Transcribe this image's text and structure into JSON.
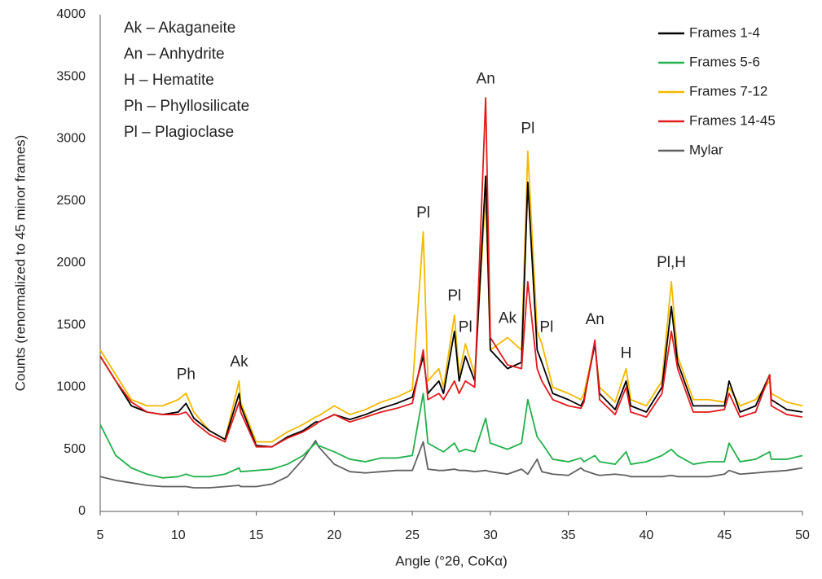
{
  "chart_data": {
    "type": "line",
    "x_label": "Angle (°2θ, CoKα)",
    "y_label": "Counts (renormalized to 45 minor frames)",
    "xlim": [
      5,
      50
    ],
    "xticks": [
      5,
      10,
      15,
      20,
      25,
      30,
      35,
      40,
      45,
      50
    ],
    "ylim": [
      0,
      4000
    ],
    "yticks": [
      0,
      500,
      1000,
      1500,
      2000,
      2500,
      3000,
      3500,
      4000
    ],
    "grid": false,
    "legend": "upper right",
    "key": [
      "Ak – Akaganeite",
      "An – Anhydrite",
      "H – Hematite",
      "Ph – Phyllosilicate",
      "Pl – Plagioclase"
    ],
    "annotations": [
      {
        "text": "Ph",
        "x": 10.5,
        "y": 1100
      },
      {
        "text": "Ak",
        "x": 13.9,
        "y": 1200
      },
      {
        "text": "Pl",
        "x": 25.7,
        "y": 2400
      },
      {
        "text": "Pl",
        "x": 27.7,
        "y": 1730
      },
      {
        "text": "Pl",
        "x": 28.4,
        "y": 1480
      },
      {
        "text": "An",
        "x": 29.7,
        "y": 3480
      },
      {
        "text": "Ak",
        "x": 31.1,
        "y": 1550
      },
      {
        "text": "Pl",
        "x": 32.4,
        "y": 3080
      },
      {
        "text": "Pl",
        "x": 33.6,
        "y": 1480
      },
      {
        "text": "An",
        "x": 36.7,
        "y": 1540
      },
      {
        "text": "H",
        "x": 38.7,
        "y": 1270
      },
      {
        "text": "Pl,H",
        "x": 41.6,
        "y": 2000
      }
    ],
    "x": [
      5,
      6,
      7,
      8,
      9,
      10,
      10.5,
      11,
      12,
      13,
      13.9,
      14,
      15,
      16,
      17,
      18,
      18.8,
      19,
      20,
      21,
      22,
      23,
      24,
      25,
      25.7,
      26,
      26.7,
      27,
      27.7,
      28,
      28.4,
      29,
      29.7,
      30,
      31.1,
      32,
      32.4,
      33,
      33.3,
      34,
      35,
      35.8,
      36,
      36.7,
      37,
      38,
      38.7,
      39,
      40,
      41,
      41.6,
      42,
      43,
      44,
      45,
      45.3,
      46,
      47,
      47.9,
      48,
      49,
      50
    ],
    "series": [
      {
        "name": "Mylar",
        "color": "#606060",
        "values": [
          280,
          250,
          230,
          210,
          200,
          200,
          200,
          190,
          190,
          200,
          210,
          200,
          200,
          220,
          280,
          420,
          570,
          520,
          380,
          320,
          310,
          320,
          330,
          330,
          560,
          340,
          330,
          330,
          340,
          330,
          330,
          320,
          330,
          320,
          300,
          340,
          300,
          420,
          320,
          300,
          290,
          350,
          330,
          300,
          290,
          300,
          290,
          280,
          280,
          280,
          290,
          280,
          280,
          280,
          300,
          330,
          300,
          310,
          320,
          320,
          330,
          350
        ]
      },
      {
        "name": "Frames 5-6",
        "color": "#22b14c",
        "values": [
          700,
          450,
          350,
          300,
          270,
          280,
          300,
          280,
          280,
          300,
          350,
          320,
          330,
          340,
          380,
          450,
          550,
          530,
          480,
          420,
          400,
          430,
          430,
          450,
          950,
          550,
          500,
          480,
          550,
          480,
          500,
          480,
          750,
          550,
          500,
          550,
          900,
          600,
          550,
          420,
          400,
          430,
          400,
          450,
          400,
          380,
          480,
          380,
          400,
          450,
          500,
          450,
          380,
          400,
          400,
          550,
          400,
          420,
          480,
          420,
          420,
          450
        ]
      },
      {
        "name": "Frames 7-12",
        "color": "#f5b800",
        "values": [
          1300,
          1100,
          900,
          850,
          850,
          900,
          950,
          800,
          650,
          580,
          1050,
          880,
          560,
          560,
          640,
          700,
          760,
          770,
          850,
          780,
          820,
          880,
          920,
          980,
          2250,
          1050,
          1150,
          1000,
          1580,
          1100,
          1350,
          1100,
          2550,
          1300,
          1400,
          1300,
          2900,
          1450,
          1350,
          1000,
          950,
          900,
          950,
          1350,
          1000,
          880,
          1150,
          900,
          850,
          1050,
          1850,
          1250,
          900,
          900,
          880,
          1000,
          850,
          900,
          1050,
          950,
          880,
          850
        ]
      },
      {
        "name": "Frames 1-4",
        "color": "#000000",
        "values": [
          1250,
          1050,
          850,
          800,
          780,
          800,
          870,
          750,
          650,
          580,
          950,
          850,
          530,
          520,
          600,
          650,
          720,
          720,
          780,
          740,
          780,
          830,
          870,
          920,
          1250,
          950,
          1050,
          950,
          1450,
          1050,
          1250,
          1050,
          2700,
          1300,
          1150,
          1200,
          2650,
          1300,
          1200,
          950,
          900,
          850,
          900,
          1350,
          950,
          820,
          1050,
          850,
          800,
          1000,
          1650,
          1200,
          850,
          850,
          850,
          1050,
          800,
          850,
          1100,
          900,
          820,
          800
        ]
      },
      {
        "name": "Frames 14-45",
        "color": "#e31a1c",
        "values": [
          1250,
          1050,
          880,
          800,
          780,
          780,
          800,
          720,
          620,
          560,
          880,
          800,
          520,
          520,
          590,
          640,
          700,
          720,
          780,
          720,
          760,
          800,
          830,
          870,
          1300,
          900,
          950,
          900,
          1050,
          950,
          1050,
          1000,
          3330,
          1400,
          1180,
          1150,
          1850,
          1150,
          1050,
          900,
          850,
          830,
          880,
          1380,
          900,
          780,
          1000,
          800,
          760,
          950,
          1450,
          1150,
          800,
          800,
          820,
          950,
          760,
          800,
          1100,
          850,
          780,
          760
        ]
      }
    ],
    "legend_order": [
      3,
      1,
      2,
      4,
      0
    ]
  }
}
